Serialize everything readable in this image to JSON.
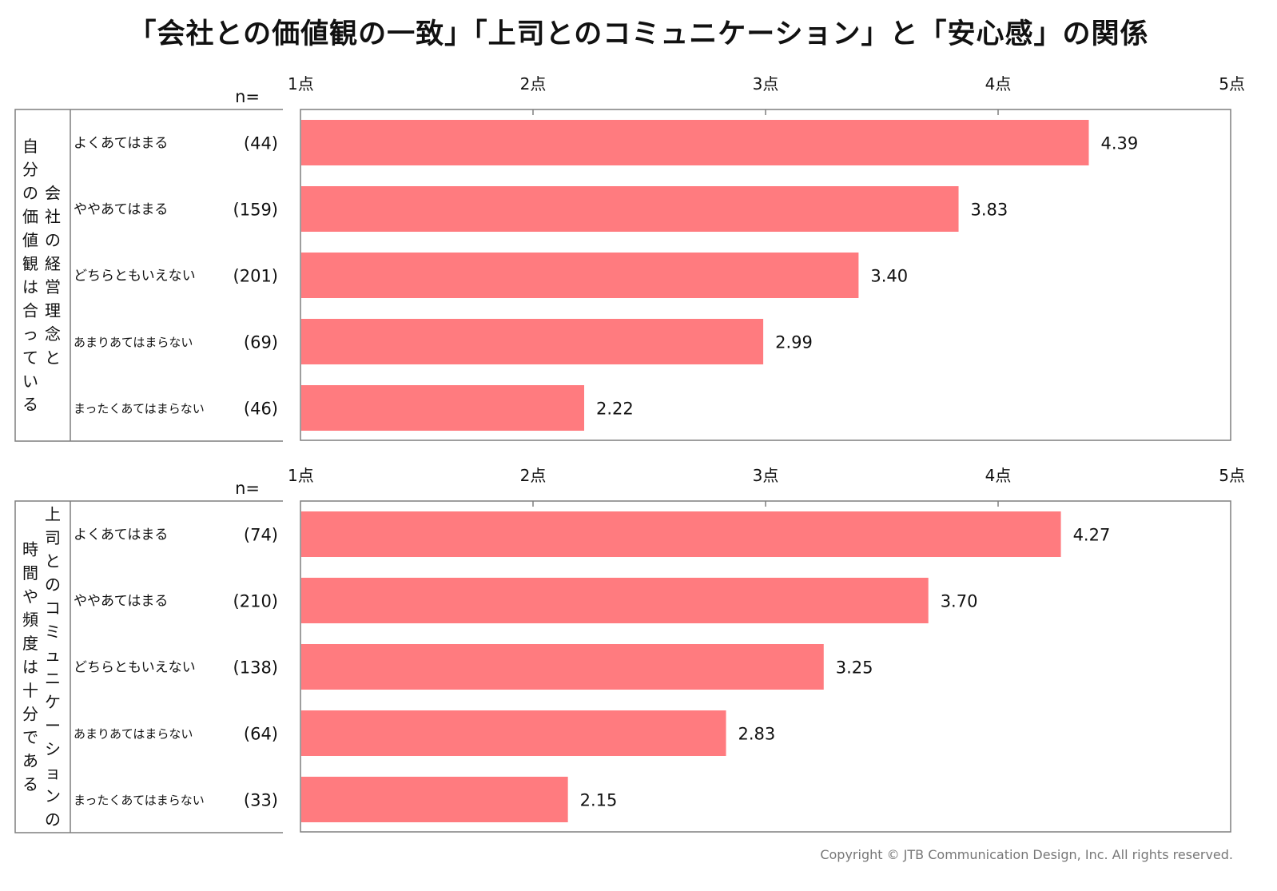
{
  "title": "「会社との価値観の一致」「上司とのコミュニケーション」と「安心感」の関係",
  "copyright": "Copyright © JTB Communication Design, Inc. All rights reserved.",
  "colors": {
    "bar": "#ff7b7f",
    "frame": "#7f7f7f"
  },
  "chart_data": [
    {
      "type": "bar",
      "orientation": "horizontal",
      "axis_ticks": [
        "1点",
        "2点",
        "3点",
        "4点",
        "5点"
      ],
      "xlim": [
        1,
        5
      ],
      "n_label": "n=",
      "group_label_cols": [
        [
          "自",
          "分",
          "の",
          "価",
          "値",
          "観",
          "は",
          "合",
          "っ",
          "て",
          "い",
          "る"
        ],
        [
          "会",
          "社",
          "の",
          "経",
          "営",
          "理",
          "念",
          "と"
        ]
      ],
      "categories": [
        "よくあてはまる",
        "ややあてはまる",
        "どちらともいえない",
        "あまりあてはまらない",
        "まったくあてはまらない"
      ],
      "n": [
        "(44)",
        "(159)",
        "(201)",
        "(69)",
        "(46)"
      ],
      "values": [
        4.39,
        3.83,
        3.4,
        2.99,
        2.22
      ],
      "value_labels": [
        "4.39",
        "3.83",
        "3.40",
        "2.99",
        "2.22"
      ]
    },
    {
      "type": "bar",
      "orientation": "horizontal",
      "axis_ticks": [
        "1点",
        "2点",
        "3点",
        "4点",
        "5点"
      ],
      "xlim": [
        1,
        5
      ],
      "n_label": "n=",
      "group_label_cols": [
        [
          "時",
          "間",
          "や",
          "頻",
          "度",
          "は",
          "十",
          "分",
          "で",
          "あ",
          "る"
        ],
        [
          "上",
          "司",
          "と",
          "の",
          "コ",
          "ミ",
          "ュ",
          "ニ",
          "ケ",
          "ー",
          "シ",
          "ョ",
          "ン",
          "の"
        ]
      ],
      "categories": [
        "よくあてはまる",
        "ややあてはまる",
        "どちらともいえない",
        "あまりあてはまらない",
        "まったくあてはまらない"
      ],
      "n": [
        "(74)",
        "(210)",
        "(138)",
        "(64)",
        "(33)"
      ],
      "values": [
        4.27,
        3.7,
        3.25,
        2.83,
        2.15
      ],
      "value_labels": [
        "4.27",
        "3.70",
        "3.25",
        "2.83",
        "2.15"
      ]
    }
  ]
}
